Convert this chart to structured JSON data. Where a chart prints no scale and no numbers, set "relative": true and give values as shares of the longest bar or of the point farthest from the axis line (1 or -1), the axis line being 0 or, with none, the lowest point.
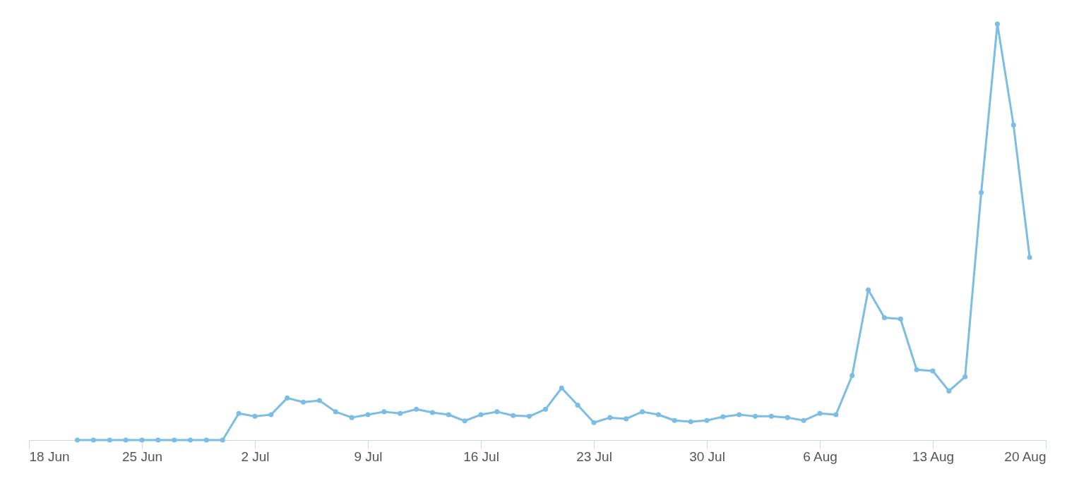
{
  "chart_data": {
    "type": "line",
    "relative": true,
    "marker": "circle",
    "line_style": "solid",
    "x": [
      "--06-21",
      "--06-22",
      "--06-23",
      "--06-24",
      "--06-25",
      "--06-26",
      "--06-27",
      "--06-28",
      "--06-29",
      "--06-30",
      "--07-01",
      "--07-02",
      "--07-03",
      "--07-04",
      "--07-05",
      "--07-06",
      "--07-07",
      "--07-08",
      "--07-09",
      "--07-10",
      "--07-11",
      "--07-12",
      "--07-13",
      "--07-14",
      "--07-15",
      "--07-16",
      "--07-17",
      "--07-18",
      "--07-19",
      "--07-20",
      "--07-21",
      "--07-22",
      "--07-23",
      "--07-24",
      "--07-25",
      "--07-26",
      "--07-27",
      "--07-28",
      "--07-29",
      "--07-30",
      "--07-31",
      "--08-01",
      "--08-02",
      "--08-03",
      "--08-04",
      "--08-05",
      "--08-06",
      "--08-07",
      "--08-08",
      "--08-09",
      "--08-10",
      "--08-11",
      "--08-12",
      "--08-13",
      "--08-14",
      "--08-15",
      "--08-16",
      "--08-17",
      "--08-18",
      "--08-19"
    ],
    "series": [
      {
        "color": "#7cbde6",
        "values": [
          0,
          0,
          0,
          0,
          0,
          0,
          0,
          0,
          0,
          0,
          0.064,
          0.057,
          0.061,
          0.101,
          0.091,
          0.095,
          0.068,
          0.054,
          0.061,
          0.068,
          0.064,
          0.074,
          0.066,
          0.061,
          0.046,
          0.061,
          0.068,
          0.059,
          0.057,
          0.074,
          0.125,
          0.084,
          0.042,
          0.054,
          0.051,
          0.068,
          0.061,
          0.047,
          0.044,
          0.047,
          0.056,
          0.061,
          0.057,
          0.057,
          0.054,
          0.047,
          0.064,
          0.061,
          0.155,
          0.361,
          0.294,
          0.291,
          0.169,
          0.166,
          0.118,
          0.152,
          0.595,
          1,
          0.757,
          0.439
        ]
      }
    ],
    "xlim": [
      "--06-18",
      "--08-20"
    ],
    "xticks": [
      {
        "value": "--06-18",
        "label": "18 Jun"
      },
      {
        "value": "--06-25",
        "label": "25 Jun"
      },
      {
        "value": "--07-02",
        "label": "2 Jul"
      },
      {
        "value": "--07-09",
        "label": "9 Jul"
      },
      {
        "value": "--07-16",
        "label": "16 Jul"
      },
      {
        "value": "--07-23",
        "label": "23 Jul"
      },
      {
        "value": "--07-30",
        "label": "30 Jul"
      },
      {
        "value": "--08-06",
        "label": "6 Aug"
      },
      {
        "value": "--08-13",
        "label": "13 Aug"
      },
      {
        "value": "--08-20",
        "label": "20 Aug"
      }
    ]
  }
}
